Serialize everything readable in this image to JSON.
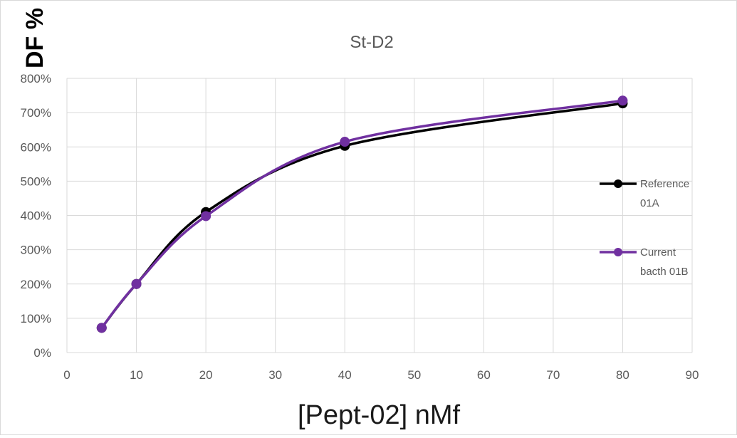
{
  "chart_data": {
    "type": "line",
    "title": "St-D2",
    "xlabel": "[Pept-02] nMf",
    "ylabel": "DF %",
    "xlim": [
      0,
      90
    ],
    "ylim": [
      0,
      800
    ],
    "x_ticks": [
      0,
      10,
      20,
      30,
      40,
      50,
      60,
      70,
      80,
      90
    ],
    "y_ticks": [
      0,
      100,
      200,
      300,
      400,
      500,
      600,
      700,
      800
    ],
    "y_tick_labels": [
      "0%",
      "100%",
      "200%",
      "300%",
      "400%",
      "500%",
      "600%",
      "700%",
      "800%"
    ],
    "grid": true,
    "smooth": true,
    "legend_position": "right",
    "x": [
      5,
      10,
      20,
      40,
      80
    ],
    "series": [
      {
        "name": "Reference 01A",
        "legend_lines": [
          "Reference",
          "01A"
        ],
        "color": "#000000",
        "values": [
          72,
          200,
          410,
          603,
          727
        ]
      },
      {
        "name": "Current bacth 01B",
        "legend_lines": [
          "Current",
          "bacth 01B"
        ],
        "color": "#7030a0",
        "values": [
          72,
          200,
          398,
          615,
          735
        ]
      }
    ]
  }
}
